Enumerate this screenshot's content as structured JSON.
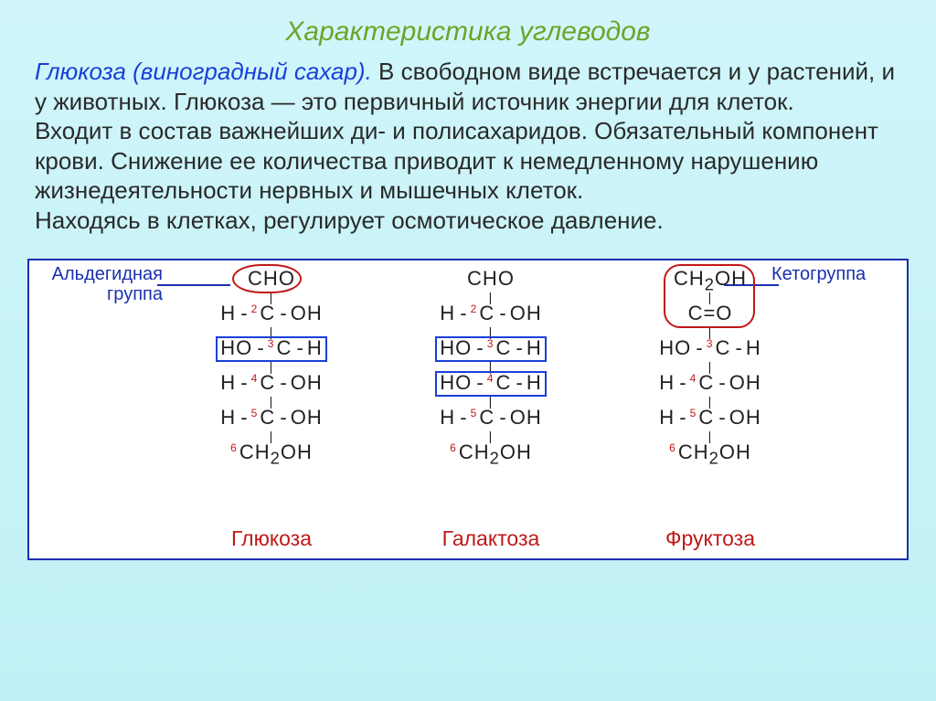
{
  "title": {
    "text": "Характеристика углеводов",
    "color": "#6fa329"
  },
  "paragraph": {
    "lead": "Глюкоза (виноградный сахар).",
    "lead_color": "#1a3fd8",
    "rest1": " В свободном виде встречается и у растений, и у животных. Глюкоза — это первичный источник энергии для клеток.",
    "rest2": "Входит в состав важнейших ди- и полисахаридов. Обязательный компонент крови. Снижение ее количества приводит к немедленному нарушению жизнедеятельности нервных и мышечных клеток.",
    "rest3": "Находясь в клетках, регулирует осмотическое давление."
  },
  "diagram": {
    "annot_left": {
      "text": "Альдегидная группа",
      "color": "#1a2fb0"
    },
    "annot_right": {
      "text": "Кетогруппа",
      "color": "#1a2fb0"
    },
    "highlight_oval_color": "#c01818",
    "highlight_rect_color": "#1a3fd8",
    "idx_color": "#c01818",
    "molecules": [
      {
        "name": "Глюкоза",
        "name_color": "#c01818",
        "rows": [
          "CHO",
          "H-C-OH",
          "HO-C-H",
          "H-C-OH",
          "H-C-OH",
          "CH₂OH"
        ],
        "idx": [
          "",
          "2",
          "3",
          "4",
          "5",
          "6"
        ],
        "rect_rows": [
          2
        ]
      },
      {
        "name": "Галактоза",
        "name_color": "#c01818",
        "rows": [
          "CHO",
          "H-C-OH",
          "HO-C-H",
          "HO-C-H",
          "H-C-OH",
          "CH₂OH"
        ],
        "idx": [
          "",
          "2",
          "3",
          "4",
          "5",
          "6"
        ],
        "rect_rows": [
          2,
          3
        ]
      },
      {
        "name": "Фруктоза",
        "name_color": "#c01818",
        "rows": [
          "CH₂OH",
          "C=O",
          "HO-C-H",
          "H-C-OH",
          "H-C-OH",
          "CH₂OH"
        ],
        "idx": [
          "",
          "",
          "3",
          "4",
          "5",
          "6"
        ],
        "rect_rows": []
      }
    ]
  }
}
